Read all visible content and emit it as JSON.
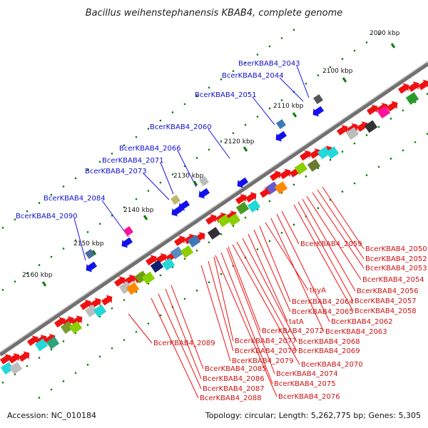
{
  "title": "Bacillus weihenstephanensis KBAB4, complete genome",
  "footer": {
    "accession": "Accession: NC_010184",
    "summary": "Topology: circular; Length: 5,262,775 bp; Genes: 5,305"
  },
  "colors": {
    "backbone": "#707070",
    "forward_gene": "#ee1111",
    "reverse_gene": "#1111ee",
    "tick": "#0a7a0a",
    "label_forward": "#cc1111",
    "label_reverse": "#1111cc"
  },
  "scale_labels": [
    {
      "text": "2090 kbp",
      "kbp": 2090
    },
    {
      "text": "2100 kbp",
      "kbp": 2100
    },
    {
      "text": "2110 kbp",
      "kbp": 2110
    },
    {
      "text": "2120 kbp",
      "kbp": 2120
    },
    {
      "text": "2130 kbp",
      "kbp": 2130
    },
    {
      "text": "2140 kbp",
      "kbp": 2140
    },
    {
      "text": "2150 kbp",
      "kbp": 2150
    },
    {
      "text": "2160 kbp",
      "kbp": 2160
    }
  ],
  "reverse_labels": [
    "BcerKBAB4_2043",
    "BcerKBAB4_2044",
    "BcerKBAB4_2051",
    "BcerKBAB4_2060",
    "BcerKBAB4_2066",
    "BcerKBAB4_2071",
    "BcerKBAB4_2073",
    "BcerKBAB4_2084",
    "BcerKBAB4_2090"
  ],
  "forward_labels": [
    "BcerKBAB4_2050",
    "BcerKBAB4_2052",
    "BcerKBAB4_2053",
    "BcerKBAB4_2054",
    "BcerKBAB4_2056",
    "BcerKBAB4_2057",
    "BcerKBAB4_2058",
    "BcerKBAB4_2059",
    "thyA",
    "BcerKBAB4_2064",
    "BcerKBAB4_2065",
    "BcerKBAB4_2062",
    "tatA",
    "BcerKBAB4_2063",
    "BcerKBAB4_2072",
    "BcerKBAB4_2068",
    "BcerKBAB4_2077",
    "BcerKBAB4_2069",
    "BcerKBAB4_2078",
    "BcerKBAB4_2079",
    "BcerKBAB4_2070",
    "BcerKBAB4_2085",
    "BcerKBAB4_2074",
    "BcerKBAB4_2086",
    "BcerKBAB4_2075",
    "BcerKBAB4_2087",
    "BcerKBAB4_2076",
    "BcerKBAB4_2088",
    "BcerKBAB4_2089"
  ]
}
